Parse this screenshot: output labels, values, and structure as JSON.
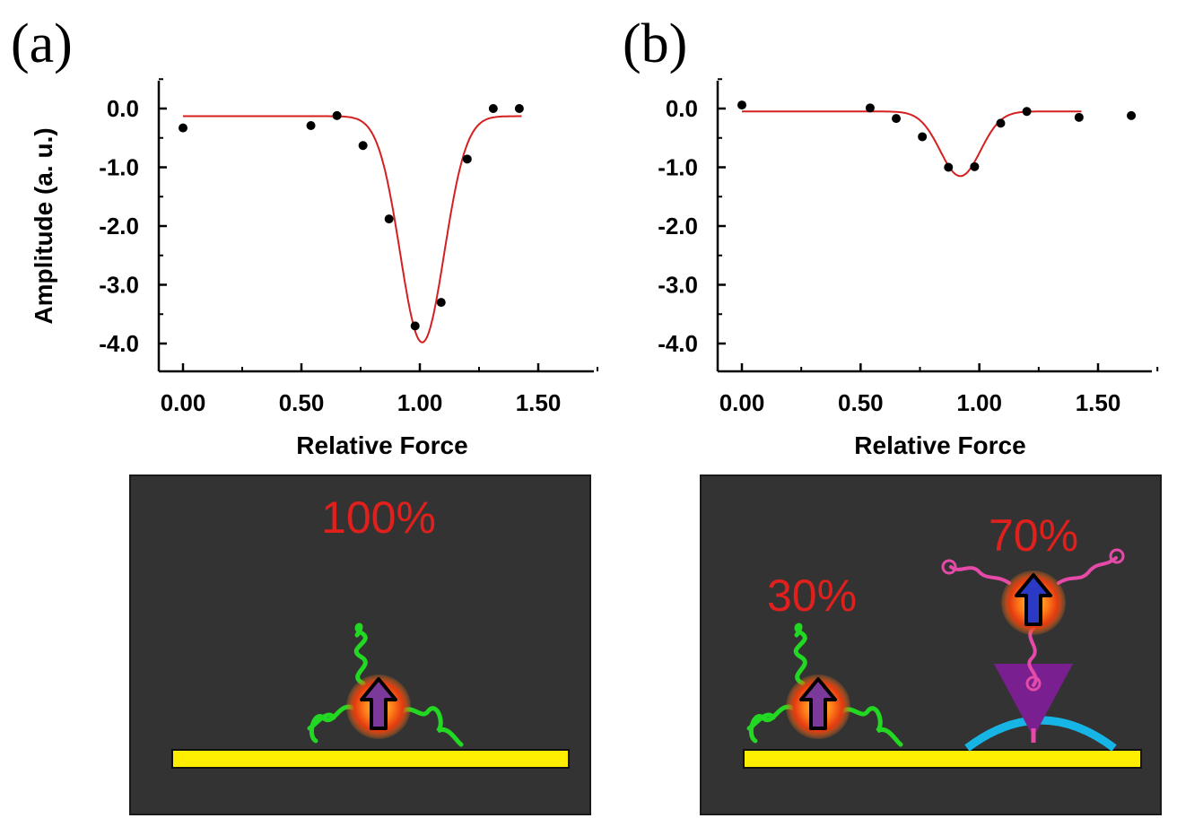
{
  "panels": {
    "a": {
      "label": "(a)"
    },
    "b": {
      "label": "(b)"
    }
  },
  "chart_data": [
    {
      "type": "scatter",
      "title": "",
      "xlabel": "Relative Force",
      "ylabel": "Amplitude (a. u.)",
      "xlim": [
        -0.1,
        1.8
      ],
      "ylim": [
        -4.5,
        0.5
      ],
      "xticks": [
        0.0,
        0.5,
        1.0,
        1.5
      ],
      "xtick_labels": [
        "0.00",
        "0.50",
        "1.00",
        "1.50"
      ],
      "yticks": [
        0.0,
        -1.0,
        -2.0,
        -3.0,
        -4.0
      ],
      "ytick_labels": [
        "0.0",
        "-1.0",
        "-2.0",
        "-3.0",
        "-4.0"
      ],
      "points": {
        "x": [
          0.0,
          0.54,
          0.65,
          0.76,
          0.87,
          0.98,
          1.09,
          1.2,
          1.31,
          1.42
        ],
        "y": [
          -0.33,
          -0.29,
          -0.12,
          -0.63,
          -1.88,
          -3.7,
          -3.3,
          -0.86,
          0.0,
          0.0
        ]
      },
      "fit": {
        "type": "gaussian",
        "baseline": -0.13,
        "amplitude": -3.85,
        "center": 1.01,
        "sigma": 0.093,
        "color": "#d42020"
      },
      "marker_color": "#000000",
      "diagram": {
        "percent_label": "100%"
      }
    },
    {
      "type": "scatter",
      "title": "",
      "xlabel": "Relative Force",
      "ylabel": "",
      "xlim": [
        -0.1,
        1.8
      ],
      "ylim": [
        -4.5,
        0.5
      ],
      "xticks": [
        0.0,
        0.5,
        1.0,
        1.5
      ],
      "xtick_labels": [
        "0.00",
        "0.50",
        "1.00",
        "1.50"
      ],
      "yticks": [
        0.0,
        -1.0,
        -2.0,
        -3.0,
        -4.0
      ],
      "ytick_labels": [
        "0.0",
        "-1.0",
        "-2.0",
        "-3.0",
        "-4.0"
      ],
      "points": {
        "x": [
          0.0,
          0.54,
          0.65,
          0.76,
          0.87,
          0.98,
          1.09,
          1.2,
          1.42,
          1.64
        ],
        "y": [
          0.06,
          0.01,
          -0.17,
          -0.48,
          -1.0,
          -0.99,
          -0.25,
          -0.05,
          -0.15,
          -0.12
        ]
      },
      "fit": {
        "type": "gaussian",
        "baseline": -0.05,
        "amplitude": -1.1,
        "center": 0.92,
        "sigma": 0.085,
        "color": "#d42020"
      },
      "marker_color": "#000000",
      "diagram": {
        "percent_left": "30%",
        "percent_right": "70%"
      }
    }
  ]
}
